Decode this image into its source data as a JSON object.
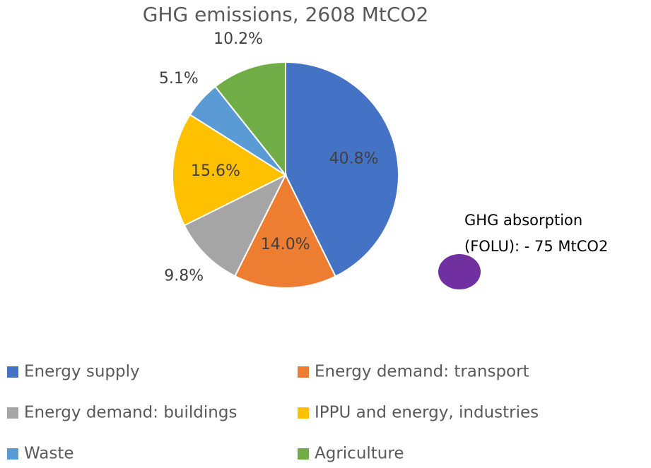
{
  "chart_data": {
    "type": "pie",
    "title": "GHG emissions, 2608 MtCO2",
    "categories": [
      "Energy supply",
      "Energy demand: transport",
      "Energy demand: buildings",
      "IPPU and energy, industries",
      "Waste",
      "Agriculture"
    ],
    "values": [
      40.8,
      14.0,
      9.8,
      15.6,
      5.1,
      10.2
    ],
    "value_labels": [
      "40.8%",
      "14.0%",
      "9.8%",
      "15.6%",
      "5.1%",
      "10.2%"
    ],
    "colors": [
      "#4472c4",
      "#ed7d31",
      "#a5a5a5",
      "#ffc000",
      "#5b9bd5",
      "#70ad47"
    ],
    "annotation": {
      "text": [
        "GHG absorption",
        "(FOLU): - 75 MtCO2"
      ],
      "color": "#7030a0"
    },
    "legend": "bottom"
  }
}
